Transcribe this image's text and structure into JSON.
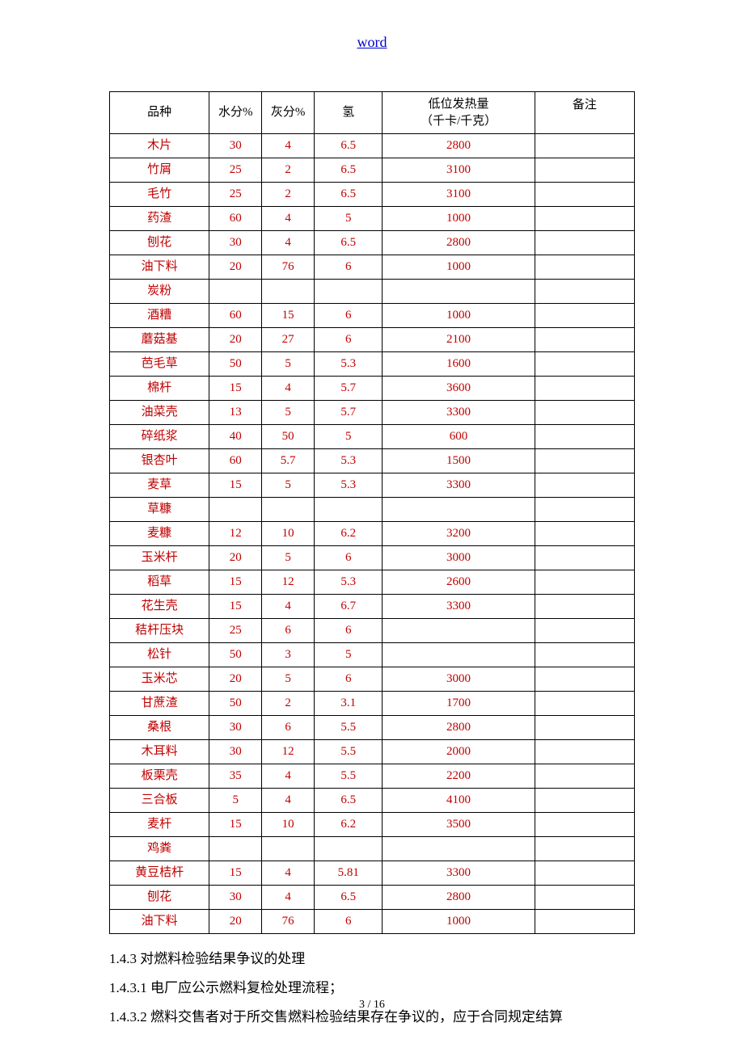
{
  "header": {
    "link_text": "word"
  },
  "table": {
    "headers": {
      "variety": "品种",
      "moisture": "水分%",
      "ash": "灰分%",
      "hydrogen": "氢",
      "heat_line1": "低位发热量",
      "heat_line2": "（千卡/千克）",
      "note": "备注"
    },
    "styling": {
      "border_color": "#000000",
      "data_color": "#c00000",
      "header_color": "#000000",
      "background_color": "#ffffff",
      "font_size": 15
    },
    "rows": [
      {
        "variety": "木片",
        "moisture": "30",
        "ash": "4",
        "hydrogen": "6.5",
        "heat": "2800",
        "note": ""
      },
      {
        "variety": "竹屑",
        "moisture": "25",
        "ash": "2",
        "hydrogen": "6.5",
        "heat": "3100",
        "note": ""
      },
      {
        "variety": "毛竹",
        "moisture": "25",
        "ash": "2",
        "hydrogen": "6.5",
        "heat": "3100",
        "note": ""
      },
      {
        "variety": "药渣",
        "moisture": "60",
        "ash": "4",
        "hydrogen": "5",
        "heat": "1000",
        "note": ""
      },
      {
        "variety": "刨花",
        "moisture": "30",
        "ash": "4",
        "hydrogen": "6.5",
        "heat": "2800",
        "note": ""
      },
      {
        "variety": "油下料",
        "moisture": "20",
        "ash": "76",
        "hydrogen": "6",
        "heat": "1000",
        "note": ""
      },
      {
        "variety": "炭粉",
        "moisture": "",
        "ash": "",
        "hydrogen": "",
        "heat": "",
        "note": ""
      },
      {
        "variety": "酒糟",
        "moisture": "60",
        "ash": "15",
        "hydrogen": "6",
        "heat": "1000",
        "note": ""
      },
      {
        "variety": "蘑菇基",
        "moisture": "20",
        "ash": "27",
        "hydrogen": "6",
        "heat": "2100",
        "note": ""
      },
      {
        "variety": "芭毛草",
        "moisture": "50",
        "ash": "5",
        "hydrogen": "5.3",
        "heat": "1600",
        "note": ""
      },
      {
        "variety": "棉杆",
        "moisture": "15",
        "ash": "4",
        "hydrogen": "5.7",
        "heat": "3600",
        "note": ""
      },
      {
        "variety": "油菜壳",
        "moisture": "13",
        "ash": "5",
        "hydrogen": "5.7",
        "heat": "3300",
        "note": ""
      },
      {
        "variety": "碎纸浆",
        "moisture": "40",
        "ash": "50",
        "hydrogen": "5",
        "heat": "600",
        "note": ""
      },
      {
        "variety": "银杏叶",
        "moisture": "60",
        "ash": "5.7",
        "hydrogen": "5.3",
        "heat": "1500",
        "note": ""
      },
      {
        "variety": "麦草",
        "moisture": "15",
        "ash": "5",
        "hydrogen": "5.3",
        "heat": "3300",
        "note": ""
      },
      {
        "variety": "草糠",
        "moisture": "",
        "ash": "",
        "hydrogen": "",
        "heat": "",
        "note": ""
      },
      {
        "variety": "麦糠",
        "moisture": "12",
        "ash": "10",
        "hydrogen": "6.2",
        "heat": "3200",
        "note": ""
      },
      {
        "variety": "玉米杆",
        "moisture": "20",
        "ash": "5",
        "hydrogen": "6",
        "heat": "3000",
        "note": ""
      },
      {
        "variety": "稻草",
        "moisture": "15",
        "ash": "12",
        "hydrogen": "5.3",
        "heat": "2600",
        "note": ""
      },
      {
        "variety": "花生壳",
        "moisture": "15",
        "ash": "4",
        "hydrogen": "6.7",
        "heat": "3300",
        "note": ""
      },
      {
        "variety": "秸杆压块",
        "moisture": "25",
        "ash": "6",
        "hydrogen": "6",
        "heat": "",
        "note": ""
      },
      {
        "variety": "松针",
        "moisture": "50",
        "ash": "3",
        "hydrogen": "5",
        "heat": "",
        "note": ""
      },
      {
        "variety": "玉米芯",
        "moisture": "20",
        "ash": "5",
        "hydrogen": "6",
        "heat": "3000",
        "note": ""
      },
      {
        "variety": "甘蔗渣",
        "moisture": "50",
        "ash": "2",
        "hydrogen": "3.1",
        "heat": "1700",
        "note": ""
      },
      {
        "variety": "桑根",
        "moisture": "30",
        "ash": "6",
        "hydrogen": "5.5",
        "heat": "2800",
        "note": ""
      },
      {
        "variety": "木耳料",
        "moisture": "30",
        "ash": "12",
        "hydrogen": "5.5",
        "heat": "2000",
        "note": ""
      },
      {
        "variety": "板栗壳",
        "moisture": "35",
        "ash": "4",
        "hydrogen": "5.5",
        "heat": "2200",
        "note": ""
      },
      {
        "variety": "三合板",
        "moisture": "5",
        "ash": "4",
        "hydrogen": "6.5",
        "heat": "4100",
        "note": ""
      },
      {
        "variety": "麦杆",
        "moisture": "15",
        "ash": "10",
        "hydrogen": "6.2",
        "heat": "3500",
        "note": ""
      },
      {
        "variety": "鸡粪",
        "moisture": "",
        "ash": "",
        "hydrogen": "",
        "heat": "",
        "note": ""
      },
      {
        "variety": "黄豆桔杆",
        "moisture": "15",
        "ash": "4",
        "hydrogen": "5.81",
        "heat": "3300",
        "note": ""
      },
      {
        "variety": "刨花",
        "moisture": "30",
        "ash": "4",
        "hydrogen": "6.5",
        "heat": "2800",
        "note": ""
      },
      {
        "variety": "油下料",
        "moisture": "20",
        "ash": "76",
        "hydrogen": "6",
        "heat": "1000",
        "note": ""
      }
    ]
  },
  "body": {
    "para1": "1.4.3 对燃料检验结果争议的处理",
    "para2": "1.4.3.1 电厂应公示燃料复检处理流程；",
    "para3": "1.4.3.2 燃料交售者对于所交售燃料检验结果存在争议的，应于合同规定结算"
  },
  "footer": {
    "page_info": "3 / 16"
  }
}
